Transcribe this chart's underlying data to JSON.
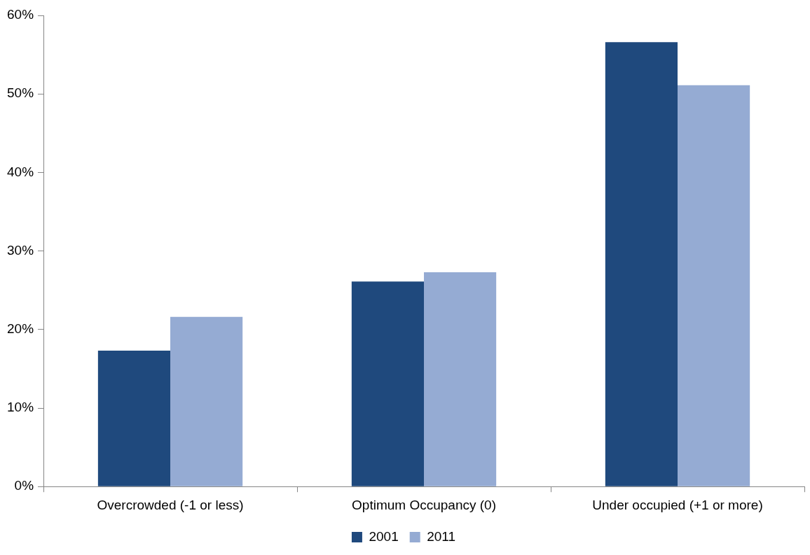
{
  "chart_data": {
    "type": "bar",
    "categories": [
      "Overcrowded (-1 or less)",
      "Optimum Occupancy (0)",
      "Under occupied (+1 or more)"
    ],
    "series": [
      {
        "name": "2001",
        "color": "#1f497d",
        "values": [
          17.3,
          26.1,
          56.6
        ]
      },
      {
        "name": "2011",
        "color": "#95abd3",
        "values": [
          21.6,
          27.3,
          51.1
        ]
      }
    ],
    "ylim": [
      0,
      60
    ],
    "yticks": [
      {
        "value": 0,
        "label": "0%"
      },
      {
        "value": 10,
        "label": "10%"
      },
      {
        "value": 20,
        "label": "20%"
      },
      {
        "value": 30,
        "label": "30%"
      },
      {
        "value": 40,
        "label": "40%"
      },
      {
        "value": 50,
        "label": "50%"
      },
      {
        "value": 60,
        "label": "60%"
      }
    ],
    "legend": "bottom"
  }
}
